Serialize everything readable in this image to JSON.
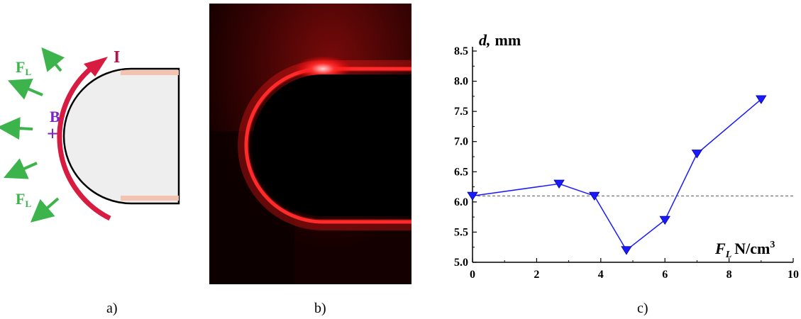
{
  "panel_a": {
    "current_label": "I",
    "field_label": "B",
    "field_symbol": "+",
    "force_label_main": "F",
    "force_label_sub": "L",
    "colors": {
      "current": "#d81b40",
      "force": "#3cb44b",
      "field": "#7b22c8",
      "electrode": "#eeeeee"
    }
  },
  "panel_b": {
    "description_colors": {
      "glow": "#ff1a1a",
      "background": "#000000"
    }
  },
  "captions": {
    "a": "a)",
    "b": "b)",
    "c": "c)"
  },
  "chart_data": {
    "type": "line",
    "ylabel_main": "d,",
    "ylabel_unit": "mm",
    "xlabel_main": "F",
    "xlabel_sub": "L",
    "xlabel_unit": "N/cm",
    "xlabel_unit_sup": "3",
    "xlim": [
      0,
      10
    ],
    "ylim": [
      5.0,
      8.5
    ],
    "xticks": [
      0,
      2,
      4,
      6,
      8,
      10
    ],
    "yticks": [
      5.0,
      5.5,
      6.0,
      6.5,
      7.0,
      7.5,
      8.0,
      8.5
    ],
    "reference_line_y": 6.1,
    "series_color": "#1a1aff",
    "x": [
      0,
      2.7,
      3.8,
      4.8,
      6.0,
      7.0,
      9.0
    ],
    "y": [
      6.1,
      6.3,
      6.1,
      5.2,
      5.7,
      6.8,
      7.7
    ],
    "marker": "triangle-down"
  }
}
